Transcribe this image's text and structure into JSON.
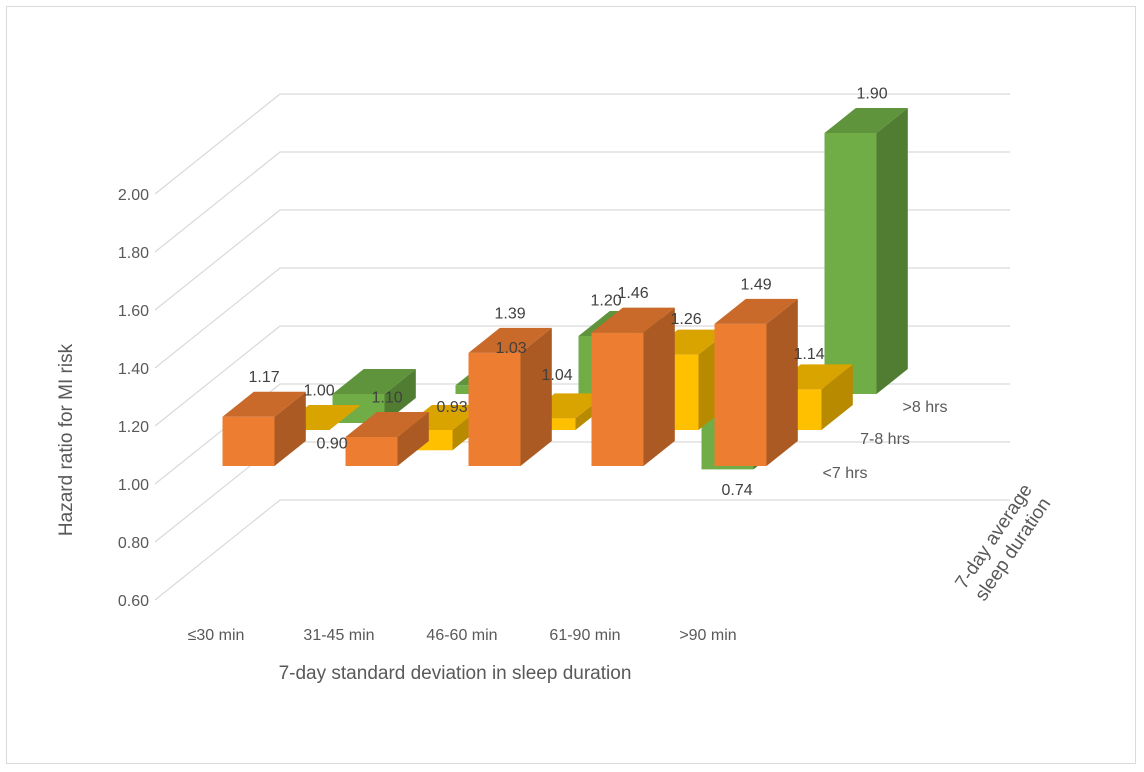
{
  "chart_data": {
    "type": "bar",
    "subtype": "3d-clustered-column",
    "title": "",
    "xlabel": "7-day standard deviation in sleep duration",
    "ylabel": "Hazard ratio for MI risk",
    "zlabel": "7-day average sleep duration",
    "zlabel_lines": [
      "7-day average",
      "sleep duration"
    ],
    "ylim": [
      0.6,
      2.0
    ],
    "yticks": [
      "0.60",
      "0.80",
      "1.00",
      "1.20",
      "1.40",
      "1.60",
      "1.80",
      "2.00"
    ],
    "baseline": 1.0,
    "categories": [
      "≤30 min",
      "31-45 min",
      "46-60 min",
      "61-90 min",
      ">90 min"
    ],
    "series": [
      {
        "name": "<7 hrs",
        "values": [
          1.17,
          1.1,
          1.39,
          1.46,
          1.49
        ],
        "labels": [
          "1.17",
          "1.10",
          "1.39",
          "1.46",
          "1.49"
        ],
        "color": "#ed7d31"
      },
      {
        "name": "7-8 hrs",
        "values": [
          1.0,
          0.93,
          1.04,
          1.26,
          1.14
        ],
        "labels": [
          "1.00",
          "0.93",
          "1.04",
          "1.26",
          "1.14"
        ],
        "color": "#ffc000"
      },
      {
        "name": ">8 hrs",
        "values": [
          0.9,
          1.03,
          1.2,
          0.74,
          1.9
        ],
        "labels": [
          "0.90",
          "1.03",
          "1.20",
          "0.74",
          "1.90"
        ],
        "color": "#70ad47"
      }
    ],
    "grid": true,
    "legend": "none"
  }
}
